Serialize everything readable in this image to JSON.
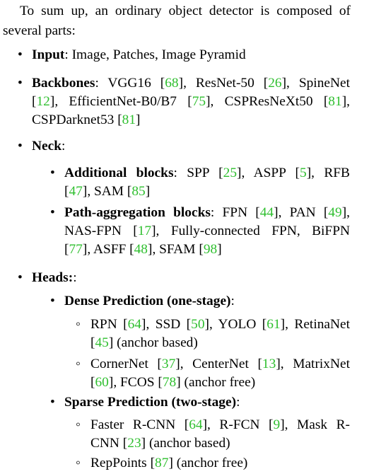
{
  "colors": {
    "citation": "#2fbf2f",
    "text": "#000000"
  },
  "intro": {
    "line1": "To sum up, an ordinary object detector is composed of",
    "line2": "several parts:"
  },
  "bullets": {
    "level1": "•",
    "level2": "•",
    "level3": "◦"
  },
  "input": {
    "label": "Input",
    "sep": ":",
    "text": " Image, Patches, Image Pyramid"
  },
  "backbones": {
    "label": "Backbones",
    "sep": ":",
    "l1_a": " VGG16 [",
    "c68": "68",
    "l1_b": "], ResNet-50 [",
    "c26": "26",
    "l1_c": "], SpineNet",
    "l2_a": "[",
    "c12": "12",
    "l2_b": "], EfficientNet-B0/B7 [",
    "c75": "75",
    "l2_c": "], CSPResNeXt50 [",
    "c81a": "81",
    "l2_d": "],",
    "l3_a": "CSPDarknet53 [",
    "c81b": "81",
    "l3_b": "]"
  },
  "neck": {
    "label": "Neck",
    "sep": ":",
    "additional": {
      "label": "Additional blocks",
      "sep": ":",
      "l1_a": " SPP [",
      "c25": "25",
      "l1_b": "], ASPP [",
      "c5": "5",
      "l1_c": "], RFB",
      "l2_a": "[",
      "c47": "47",
      "l2_b": "], SAM [",
      "c85": "85",
      "l2_c": "]"
    },
    "path": {
      "label": "Path-aggregation blocks",
      "sep": ":",
      "l1_a": " FPN [",
      "c44": "44",
      "l1_b": "], PAN [",
      "c49": "49",
      "l1_c": "],",
      "l2_a": "NAS-FPN [",
      "c17": "17",
      "l2_b": "], Fully-connected FPN, BiFPN",
      "l3_a": "[",
      "c77": "77",
      "l3_b": "], ASFF [",
      "c48": "48",
      "l3_c": "], SFAM [",
      "c98": "98",
      "l3_d": "]"
    }
  },
  "heads": {
    "label": "Heads:",
    "sep": ":",
    "dense": {
      "label": "Dense Prediction (one-stage)",
      "sep": ":",
      "item1": {
        "l1_a": "RPN [",
        "c64": "64",
        "l1_b": "], SSD [",
        "c50": "50",
        "l1_c": "], YOLO [",
        "c61": "61",
        "l1_d": "], RetinaNet",
        "l2_a": "[",
        "c45": "45",
        "l2_b": "] (anchor based)"
      },
      "item2": {
        "l1_a": "CornerNet [",
        "c37": "37",
        "l1_b": "], CenterNet [",
        "c13": "13",
        "l1_c": "], MatrixNet",
        "l2_a": "[",
        "c60": "60",
        "l2_b": "], FCOS [",
        "c78": "78",
        "l2_c": "] (anchor free)"
      }
    },
    "sparse": {
      "label": "Sparse Prediction (two-stage)",
      "sep": ":",
      "item1": {
        "l1_a": "Faster R-CNN [",
        "c64": "64",
        "l1_b": "], R-FCN [",
        "c9": "9",
        "l1_c": "], Mask R-",
        "l2_a": "CNN [",
        "c23": "23",
        "l2_b": "] (anchor based)"
      },
      "item2": {
        "l1_a": "RepPoints [",
        "c87": "87",
        "l1_b": "] (anchor free)"
      }
    }
  }
}
